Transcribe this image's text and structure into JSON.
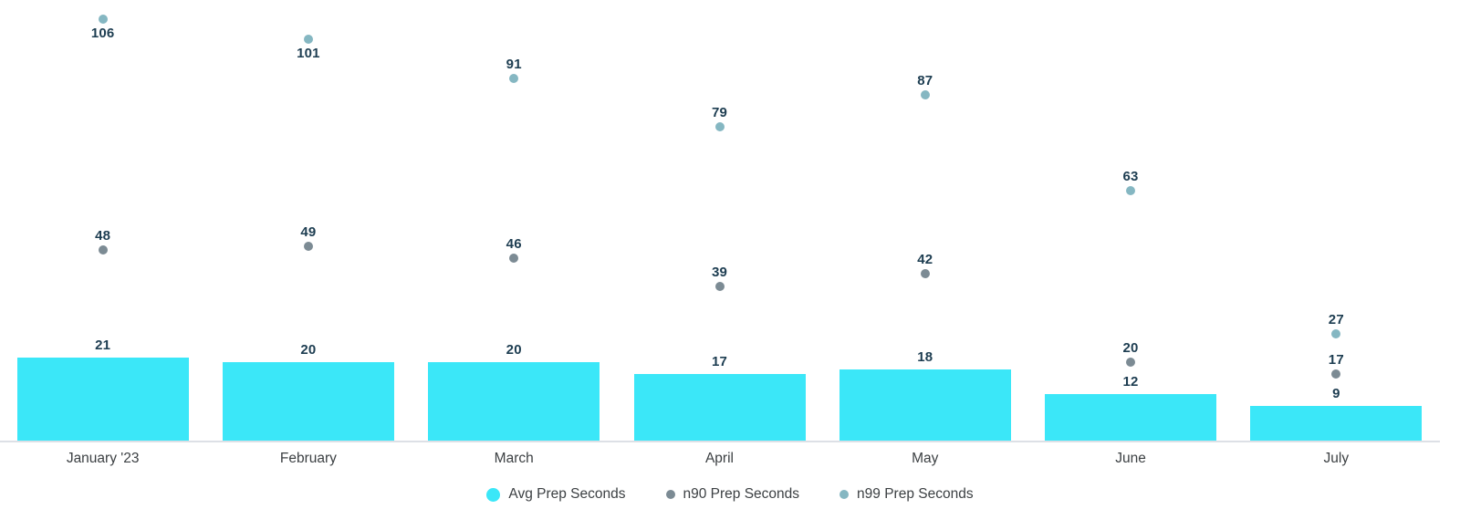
{
  "chart_data": {
    "type": "bar",
    "title": "",
    "xlabel": "",
    "ylabel": "",
    "categories": [
      "January '23",
      "February",
      "March",
      "April",
      "May",
      "June",
      "July"
    ],
    "series": [
      {
        "name": "Avg Prep Seconds",
        "kind": "bar",
        "color": "#3be7f8",
        "values": [
          21,
          20,
          20,
          17,
          18,
          12,
          9
        ]
      },
      {
        "name": "n90 Prep Seconds",
        "kind": "scatter",
        "color": "#7c8b94",
        "values": [
          48,
          49,
          46,
          39,
          42,
          20,
          17
        ]
      },
      {
        "name": "n99 Prep Seconds",
        "kind": "scatter",
        "color": "#85b7c2",
        "values": [
          106,
          101,
          91,
          79,
          87,
          63,
          27
        ]
      }
    ],
    "ylim": [
      0,
      110
    ],
    "grid": false,
    "legend_position": "bottom",
    "value_labels_shown": true,
    "colors": {
      "value_label": "#1d3d51",
      "axis_label": "#3c4043",
      "axis_line": "#dde0e6",
      "background": "#ffffff"
    }
  }
}
